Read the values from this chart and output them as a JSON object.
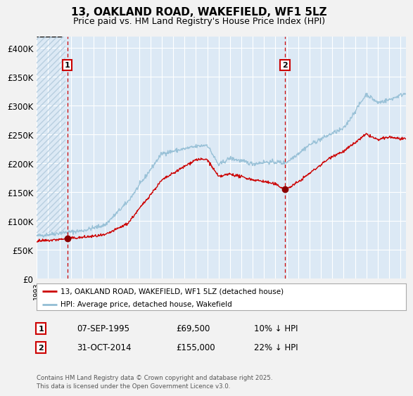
{
  "title_line1": "13, OAKLAND ROAD, WAKEFIELD, WF1 5LZ",
  "title_line2": "Price paid vs. HM Land Registry's House Price Index (HPI)",
  "fig_bg_color": "#f2f2f2",
  "plot_bg_color": "#dce9f5",
  "grid_color": "#ffffff",
  "red_line_color": "#cc0000",
  "blue_line_color": "#92bdd4",
  "dashed_line_color": "#cc0000",
  "marker_color": "#8b0000",
  "annotation_border_color": "#cc0000",
  "ylim": [
    0,
    420000
  ],
  "yticks": [
    0,
    50000,
    100000,
    150000,
    200000,
    250000,
    300000,
    350000,
    400000
  ],
  "ytick_labels": [
    "£0",
    "£50K",
    "£100K",
    "£150K",
    "£200K",
    "£250K",
    "£300K",
    "£350K",
    "£400K"
  ],
  "legend_entries": [
    "13, OAKLAND ROAD, WAKEFIELD, WF1 5LZ (detached house)",
    "HPI: Average price, detached house, Wakefield"
  ],
  "annotation1_label": "1",
  "annotation1_date": "07-SEP-1995",
  "annotation1_price": "£69,500",
  "annotation1_hpi": "10% ↓ HPI",
  "annotation2_label": "2",
  "annotation2_date": "31-OCT-2014",
  "annotation2_price": "£155,000",
  "annotation2_hpi": "22% ↓ HPI",
  "sale1_year": 1995.69,
  "sale1_price": 69500,
  "sale2_year": 2014.83,
  "sale2_price": 155000,
  "footer": "Contains HM Land Registry data © Crown copyright and database right 2025.\nThis data is licensed under the Open Government Licence v3.0.",
  "xstart": 1993.0,
  "xend": 2025.5
}
